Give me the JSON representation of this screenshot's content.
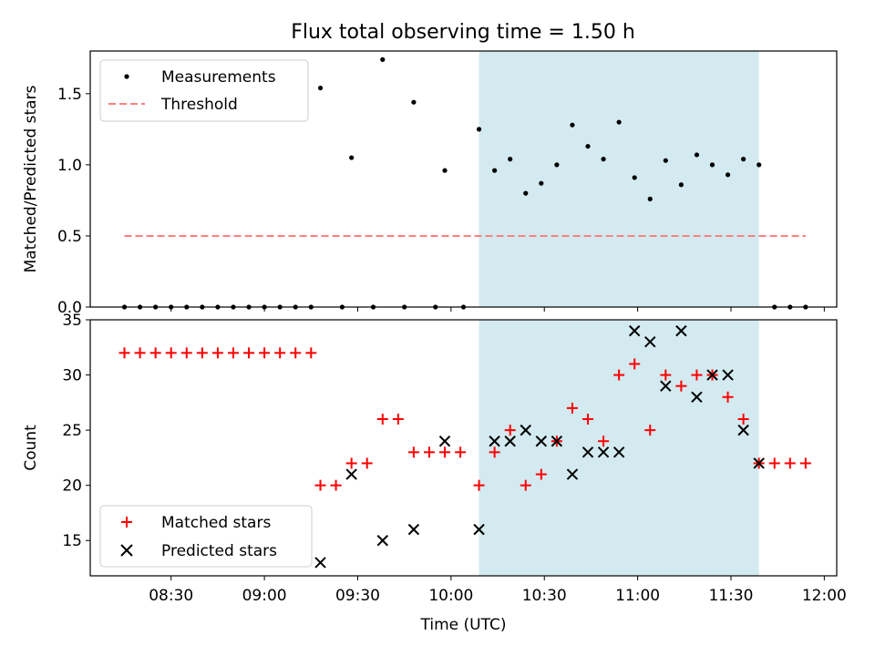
{
  "chart_data": [
    {
      "type": "scatter",
      "title": "Flux total observing time = 1.50 h",
      "xlabel": "",
      "ylabel": "Matched/Predicted stars",
      "ylim": [
        0,
        1.8
      ],
      "yticks": [
        "0.0",
        "0.5",
        "1.0",
        "1.5"
      ],
      "xlim": [
        "08:04",
        "12:04"
      ],
      "shaded_interval": {
        "start": "10:09",
        "end": "11:39",
        "color": "#d3eaf0"
      },
      "legend": {
        "placement": "top-left",
        "entries": [
          "Measurements",
          "Threshold"
        ]
      },
      "series": [
        {
          "name": "Measurements",
          "marker": "dot",
          "color": "#000000",
          "points": [
            [
              "08:15",
              0
            ],
            [
              "08:20",
              0
            ],
            [
              "08:25",
              0
            ],
            [
              "08:30",
              0
            ],
            [
              "08:35",
              0
            ],
            [
              "08:40",
              0
            ],
            [
              "08:45",
              0
            ],
            [
              "08:50",
              0
            ],
            [
              "08:55",
              0
            ],
            [
              "09:00",
              0
            ],
            [
              "09:05",
              0
            ],
            [
              "09:10",
              0
            ],
            [
              "09:15",
              0
            ],
            [
              "09:18",
              1.54
            ],
            [
              "09:25",
              0
            ],
            [
              "09:28",
              1.05
            ],
            [
              "09:35",
              0
            ],
            [
              "09:38",
              1.74
            ],
            [
              "09:45",
              0
            ],
            [
              "09:48",
              1.44
            ],
            [
              "09:55",
              0
            ],
            [
              "09:58",
              0.96
            ],
            [
              "10:04",
              0
            ],
            [
              "10:09",
              1.25
            ],
            [
              "10:14",
              0.96
            ],
            [
              "10:19",
              1.04
            ],
            [
              "10:24",
              0.8
            ],
            [
              "10:29",
              0.87
            ],
            [
              "10:34",
              1.0
            ],
            [
              "10:39",
              1.28
            ],
            [
              "10:44",
              1.13
            ],
            [
              "10:49",
              1.04
            ],
            [
              "10:54",
              1.3
            ],
            [
              "10:59",
              0.91
            ],
            [
              "11:04",
              0.76
            ],
            [
              "11:09",
              1.03
            ],
            [
              "11:14",
              0.86
            ],
            [
              "11:19",
              1.07
            ],
            [
              "11:24",
              1.0
            ],
            [
              "11:29",
              0.93
            ],
            [
              "11:34",
              1.04
            ],
            [
              "11:39",
              1.0
            ],
            [
              "11:44",
              0
            ],
            [
              "11:49",
              0
            ],
            [
              "11:54",
              0
            ]
          ]
        },
        {
          "name": "Threshold",
          "type": "line",
          "style": "dashed",
          "color": "#ff7f7f",
          "points": [
            [
              "08:15",
              0.5
            ],
            [
              "11:54",
              0.5
            ]
          ]
        }
      ]
    },
    {
      "type": "scatter",
      "title": "",
      "xlabel": "Time (UTC)",
      "ylabel": "Count",
      "ylim": [
        11.8,
        35
      ],
      "yticks": [
        "15",
        "20",
        "25",
        "30",
        "35"
      ],
      "xlim": [
        "08:04",
        "12:04"
      ],
      "xticks": [
        "08:30",
        "09:00",
        "09:30",
        "10:00",
        "10:30",
        "11:00",
        "11:30",
        "12:00"
      ],
      "shaded_interval": {
        "start": "10:09",
        "end": "11:39",
        "color": "#d3eaf0"
      },
      "legend": {
        "placement": "bottom-left",
        "entries": [
          "Matched stars",
          "Predicted stars"
        ]
      },
      "series": [
        {
          "name": "Matched stars",
          "marker": "plus",
          "color": "#ff0000",
          "points": [
            [
              "08:15",
              32
            ],
            [
              "08:20",
              32
            ],
            [
              "08:25",
              32
            ],
            [
              "08:30",
              32
            ],
            [
              "08:35",
              32
            ],
            [
              "08:40",
              32
            ],
            [
              "08:45",
              32
            ],
            [
              "08:50",
              32
            ],
            [
              "08:55",
              32
            ],
            [
              "09:00",
              32
            ],
            [
              "09:05",
              32
            ],
            [
              "09:10",
              32
            ],
            [
              "09:15",
              32
            ],
            [
              "09:18",
              20
            ],
            [
              "09:23",
              20
            ],
            [
              "09:28",
              22
            ],
            [
              "09:33",
              22
            ],
            [
              "09:38",
              26
            ],
            [
              "09:43",
              26
            ],
            [
              "09:48",
              23
            ],
            [
              "09:53",
              23
            ],
            [
              "09:58",
              23
            ],
            [
              "10:03",
              23
            ],
            [
              "10:09",
              20
            ],
            [
              "10:14",
              23
            ],
            [
              "10:19",
              25
            ],
            [
              "10:24",
              20
            ],
            [
              "10:29",
              21
            ],
            [
              "10:34",
              24
            ],
            [
              "10:39",
              27
            ],
            [
              "10:44",
              26
            ],
            [
              "10:49",
              24
            ],
            [
              "10:54",
              30
            ],
            [
              "10:59",
              31
            ],
            [
              "11:04",
              25
            ],
            [
              "11:09",
              30
            ],
            [
              "11:14",
              29
            ],
            [
              "11:19",
              30
            ],
            [
              "11:24",
              30
            ],
            [
              "11:29",
              28
            ],
            [
              "11:34",
              26
            ],
            [
              "11:39",
              22
            ],
            [
              "11:44",
              22
            ],
            [
              "11:49",
              22
            ],
            [
              "11:54",
              22
            ]
          ]
        },
        {
          "name": "Predicted stars",
          "marker": "x",
          "color": "#000000",
          "points": [
            [
              "09:18",
              13
            ],
            [
              "09:28",
              21
            ],
            [
              "09:38",
              15
            ],
            [
              "09:48",
              16
            ],
            [
              "09:58",
              24
            ],
            [
              "10:09",
              16
            ],
            [
              "10:14",
              24
            ],
            [
              "10:19",
              24
            ],
            [
              "10:24",
              25
            ],
            [
              "10:29",
              24
            ],
            [
              "10:34",
              24
            ],
            [
              "10:39",
              21
            ],
            [
              "10:44",
              23
            ],
            [
              "10:49",
              23
            ],
            [
              "10:54",
              23
            ],
            [
              "10:59",
              34
            ],
            [
              "11:04",
              33
            ],
            [
              "11:09",
              29
            ],
            [
              "11:14",
              34
            ],
            [
              "11:19",
              28
            ],
            [
              "11:24",
              30
            ],
            [
              "11:29",
              30
            ],
            [
              "11:34",
              25
            ],
            [
              "11:39",
              22
            ]
          ]
        }
      ]
    }
  ]
}
